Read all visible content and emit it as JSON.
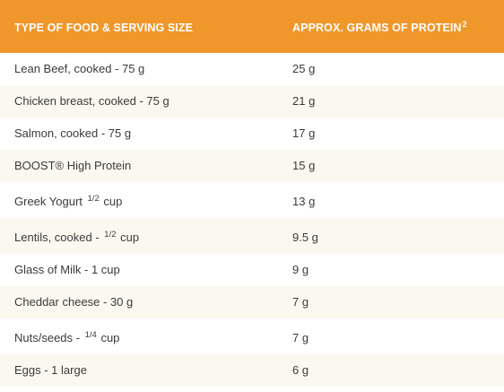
{
  "header": {
    "col1": "TYPE OF FOOD & SERVING SIZE",
    "col2": "APPROX. GRAMS OF PROTEIN",
    "col2_sup": "2"
  },
  "rows": [
    {
      "food": "Lean Beef, cooked - 75 g",
      "protein": "25 g"
    },
    {
      "food": "Chicken breast, cooked - 75 g",
      "protein": "21 g"
    },
    {
      "food": "Salmon, cooked - 75 g",
      "protein": "17 g"
    },
    {
      "food": "BOOST® High Protein",
      "protein": "15 g"
    },
    {
      "food_pre": "Greek Yogurt",
      "food_frac": "1/2",
      "food_post": "cup",
      "protein": "13 g"
    },
    {
      "food_pre": "Lentils, cooked -",
      "food_frac": "1/2",
      "food_post": "cup",
      "protein": "9.5 g"
    },
    {
      "food": "Glass of Milk - 1 cup",
      "protein": "9 g"
    },
    {
      "food": "Cheddar cheese - 30 g",
      "protein": "7 g"
    },
    {
      "food_pre": "Nuts/seeds -",
      "food_frac": "1/4",
      "food_post": "cup",
      "protein": "7 g"
    },
    {
      "food": "Eggs - 1 large",
      "protein": "6 g"
    }
  ],
  "colors": {
    "header_bg": "#F0972C",
    "stripe_bg": "#FBF9EF"
  }
}
